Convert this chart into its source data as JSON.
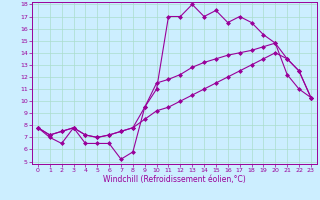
{
  "xlabel": "Windchill (Refroidissement éolien,°C)",
  "bg_color": "#cceeff",
  "line_color": "#990099",
  "x_values": [
    0,
    1,
    2,
    3,
    4,
    5,
    6,
    7,
    8,
    9,
    10,
    11,
    12,
    13,
    14,
    15,
    16,
    17,
    18,
    19,
    20,
    21,
    22,
    23
  ],
  "line1": [
    7.8,
    7.0,
    6.5,
    7.8,
    6.5,
    6.5,
    6.5,
    5.2,
    5.8,
    9.5,
    11.0,
    17.0,
    17.0,
    18.0,
    17.0,
    17.5,
    16.5,
    17.0,
    16.5,
    15.5,
    14.8,
    12.2,
    11.0,
    10.3
  ],
  "line2": [
    7.8,
    7.2,
    7.5,
    7.8,
    7.2,
    7.0,
    7.2,
    7.5,
    7.8,
    9.5,
    11.5,
    11.8,
    12.2,
    12.8,
    13.2,
    13.5,
    13.8,
    14.0,
    14.2,
    14.5,
    14.8,
    13.5,
    12.5,
    10.3
  ],
  "line3": [
    7.8,
    7.2,
    7.5,
    7.8,
    7.2,
    7.0,
    7.2,
    7.5,
    7.8,
    8.5,
    9.2,
    9.5,
    10.0,
    10.5,
    11.0,
    11.5,
    12.0,
    12.5,
    13.0,
    13.5,
    14.0,
    13.5,
    12.5,
    10.3
  ],
  "ylim": [
    5,
    18
  ],
  "xlim": [
    -0.5,
    23.5
  ],
  "yticks": [
    5,
    6,
    7,
    8,
    9,
    10,
    11,
    12,
    13,
    14,
    15,
    16,
    17,
    18
  ],
  "xticks": [
    0,
    1,
    2,
    3,
    4,
    5,
    6,
    7,
    8,
    9,
    10,
    11,
    12,
    13,
    14,
    15,
    16,
    17,
    18,
    19,
    20,
    21,
    22,
    23
  ],
  "grid_color": "#aaddcc",
  "marker": "D",
  "markersize": 2,
  "linewidth": 0.8,
  "tick_fontsize": 4.5,
  "xlabel_fontsize": 5.5
}
